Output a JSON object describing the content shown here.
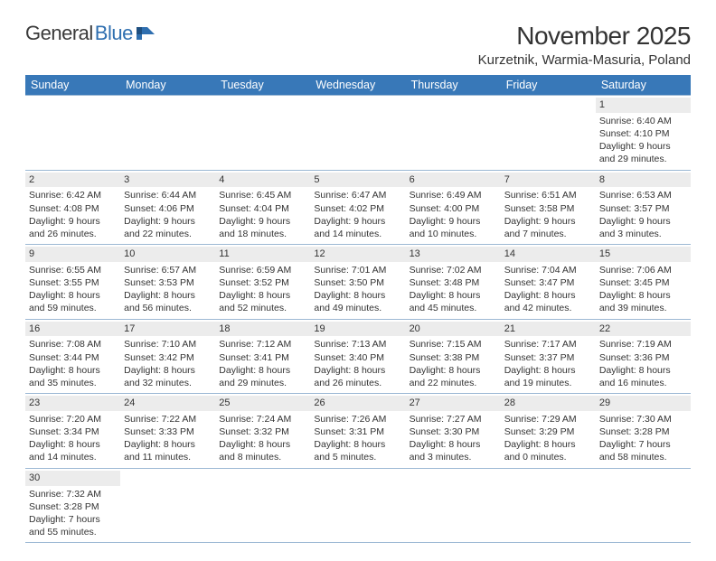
{
  "logo": {
    "part1": "General",
    "part2": "Blue"
  },
  "title": "November 2025",
  "location": "Kurzetnik, Warmia-Masuria, Poland",
  "colors": {
    "header_bg": "#3878b8",
    "header_text": "#ffffff",
    "daynum_bg": "#ececec",
    "row_border": "#9cb8d4",
    "text": "#333333",
    "logo_blue": "#2f6fb0"
  },
  "weekdays": [
    "Sunday",
    "Monday",
    "Tuesday",
    "Wednesday",
    "Thursday",
    "Friday",
    "Saturday"
  ],
  "weeks": [
    [
      null,
      null,
      null,
      null,
      null,
      null,
      {
        "n": "1",
        "sr": "Sunrise: 6:40 AM",
        "ss": "Sunset: 4:10 PM",
        "d1": "Daylight: 9 hours",
        "d2": "and 29 minutes."
      }
    ],
    [
      {
        "n": "2",
        "sr": "Sunrise: 6:42 AM",
        "ss": "Sunset: 4:08 PM",
        "d1": "Daylight: 9 hours",
        "d2": "and 26 minutes."
      },
      {
        "n": "3",
        "sr": "Sunrise: 6:44 AM",
        "ss": "Sunset: 4:06 PM",
        "d1": "Daylight: 9 hours",
        "d2": "and 22 minutes."
      },
      {
        "n": "4",
        "sr": "Sunrise: 6:45 AM",
        "ss": "Sunset: 4:04 PM",
        "d1": "Daylight: 9 hours",
        "d2": "and 18 minutes."
      },
      {
        "n": "5",
        "sr": "Sunrise: 6:47 AM",
        "ss": "Sunset: 4:02 PM",
        "d1": "Daylight: 9 hours",
        "d2": "and 14 minutes."
      },
      {
        "n": "6",
        "sr": "Sunrise: 6:49 AM",
        "ss": "Sunset: 4:00 PM",
        "d1": "Daylight: 9 hours",
        "d2": "and 10 minutes."
      },
      {
        "n": "7",
        "sr": "Sunrise: 6:51 AM",
        "ss": "Sunset: 3:58 PM",
        "d1": "Daylight: 9 hours",
        "d2": "and 7 minutes."
      },
      {
        "n": "8",
        "sr": "Sunrise: 6:53 AM",
        "ss": "Sunset: 3:57 PM",
        "d1": "Daylight: 9 hours",
        "d2": "and 3 minutes."
      }
    ],
    [
      {
        "n": "9",
        "sr": "Sunrise: 6:55 AM",
        "ss": "Sunset: 3:55 PM",
        "d1": "Daylight: 8 hours",
        "d2": "and 59 minutes."
      },
      {
        "n": "10",
        "sr": "Sunrise: 6:57 AM",
        "ss": "Sunset: 3:53 PM",
        "d1": "Daylight: 8 hours",
        "d2": "and 56 minutes."
      },
      {
        "n": "11",
        "sr": "Sunrise: 6:59 AM",
        "ss": "Sunset: 3:52 PM",
        "d1": "Daylight: 8 hours",
        "d2": "and 52 minutes."
      },
      {
        "n": "12",
        "sr": "Sunrise: 7:01 AM",
        "ss": "Sunset: 3:50 PM",
        "d1": "Daylight: 8 hours",
        "d2": "and 49 minutes."
      },
      {
        "n": "13",
        "sr": "Sunrise: 7:02 AM",
        "ss": "Sunset: 3:48 PM",
        "d1": "Daylight: 8 hours",
        "d2": "and 45 minutes."
      },
      {
        "n": "14",
        "sr": "Sunrise: 7:04 AM",
        "ss": "Sunset: 3:47 PM",
        "d1": "Daylight: 8 hours",
        "d2": "and 42 minutes."
      },
      {
        "n": "15",
        "sr": "Sunrise: 7:06 AM",
        "ss": "Sunset: 3:45 PM",
        "d1": "Daylight: 8 hours",
        "d2": "and 39 minutes."
      }
    ],
    [
      {
        "n": "16",
        "sr": "Sunrise: 7:08 AM",
        "ss": "Sunset: 3:44 PM",
        "d1": "Daylight: 8 hours",
        "d2": "and 35 minutes."
      },
      {
        "n": "17",
        "sr": "Sunrise: 7:10 AM",
        "ss": "Sunset: 3:42 PM",
        "d1": "Daylight: 8 hours",
        "d2": "and 32 minutes."
      },
      {
        "n": "18",
        "sr": "Sunrise: 7:12 AM",
        "ss": "Sunset: 3:41 PM",
        "d1": "Daylight: 8 hours",
        "d2": "and 29 minutes."
      },
      {
        "n": "19",
        "sr": "Sunrise: 7:13 AM",
        "ss": "Sunset: 3:40 PM",
        "d1": "Daylight: 8 hours",
        "d2": "and 26 minutes."
      },
      {
        "n": "20",
        "sr": "Sunrise: 7:15 AM",
        "ss": "Sunset: 3:38 PM",
        "d1": "Daylight: 8 hours",
        "d2": "and 22 minutes."
      },
      {
        "n": "21",
        "sr": "Sunrise: 7:17 AM",
        "ss": "Sunset: 3:37 PM",
        "d1": "Daylight: 8 hours",
        "d2": "and 19 minutes."
      },
      {
        "n": "22",
        "sr": "Sunrise: 7:19 AM",
        "ss": "Sunset: 3:36 PM",
        "d1": "Daylight: 8 hours",
        "d2": "and 16 minutes."
      }
    ],
    [
      {
        "n": "23",
        "sr": "Sunrise: 7:20 AM",
        "ss": "Sunset: 3:34 PM",
        "d1": "Daylight: 8 hours",
        "d2": "and 14 minutes."
      },
      {
        "n": "24",
        "sr": "Sunrise: 7:22 AM",
        "ss": "Sunset: 3:33 PM",
        "d1": "Daylight: 8 hours",
        "d2": "and 11 minutes."
      },
      {
        "n": "25",
        "sr": "Sunrise: 7:24 AM",
        "ss": "Sunset: 3:32 PM",
        "d1": "Daylight: 8 hours",
        "d2": "and 8 minutes."
      },
      {
        "n": "26",
        "sr": "Sunrise: 7:26 AM",
        "ss": "Sunset: 3:31 PM",
        "d1": "Daylight: 8 hours",
        "d2": "and 5 minutes."
      },
      {
        "n": "27",
        "sr": "Sunrise: 7:27 AM",
        "ss": "Sunset: 3:30 PM",
        "d1": "Daylight: 8 hours",
        "d2": "and 3 minutes."
      },
      {
        "n": "28",
        "sr": "Sunrise: 7:29 AM",
        "ss": "Sunset: 3:29 PM",
        "d1": "Daylight: 8 hours",
        "d2": "and 0 minutes."
      },
      {
        "n": "29",
        "sr": "Sunrise: 7:30 AM",
        "ss": "Sunset: 3:28 PM",
        "d1": "Daylight: 7 hours",
        "d2": "and 58 minutes."
      }
    ],
    [
      {
        "n": "30",
        "sr": "Sunrise: 7:32 AM",
        "ss": "Sunset: 3:28 PM",
        "d1": "Daylight: 7 hours",
        "d2": "and 55 minutes."
      },
      null,
      null,
      null,
      null,
      null,
      null
    ]
  ]
}
